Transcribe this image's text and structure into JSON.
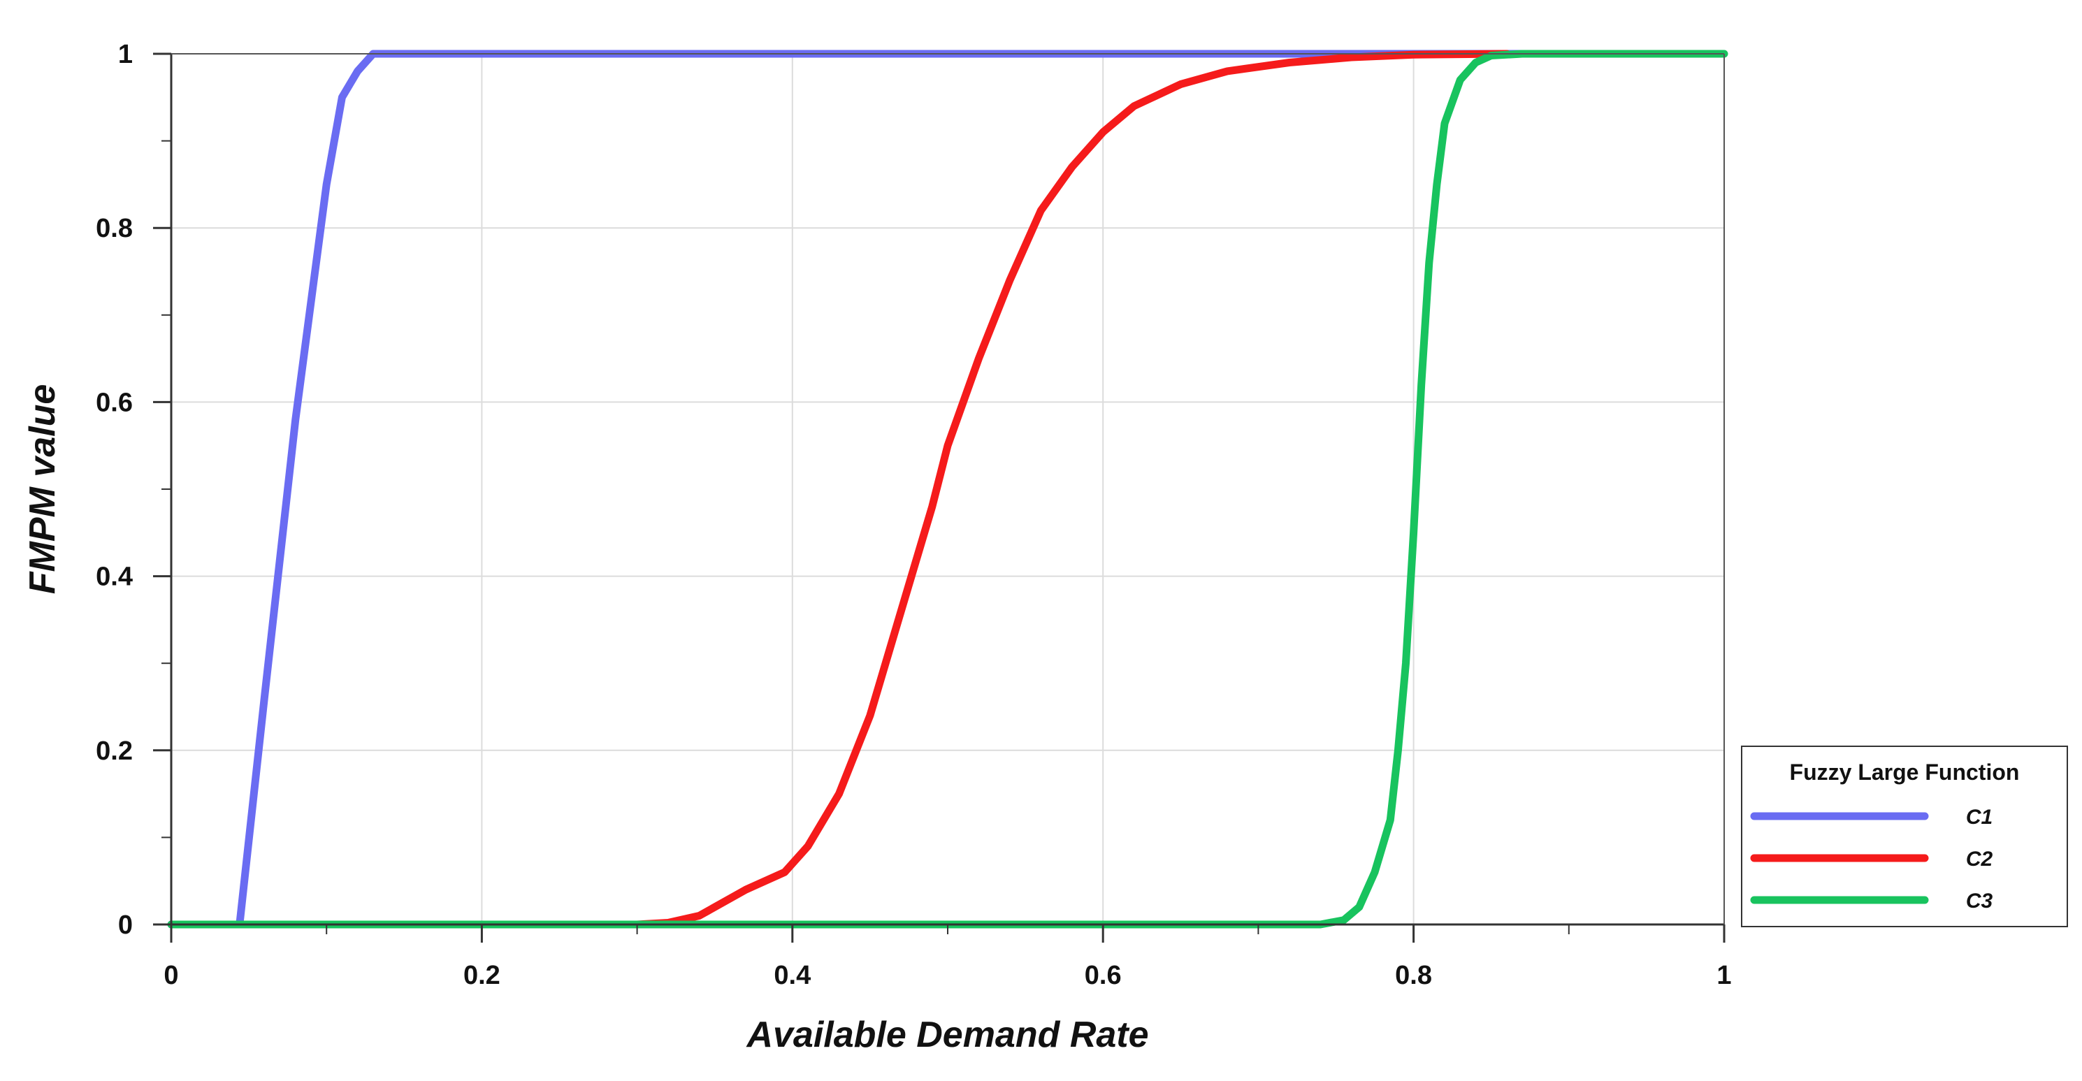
{
  "chart_data": {
    "type": "line",
    "title": "",
    "xlabel": "Available Demand Rate",
    "ylabel": "FMPM value",
    "xlim": [
      0,
      1
    ],
    "ylim": [
      0,
      1
    ],
    "x_ticks": [
      0,
      0.2,
      0.4,
      0.6,
      0.8,
      1
    ],
    "x_tick_labels": [
      "0",
      "0.2",
      "0.4",
      "0.6",
      "0.8",
      "1"
    ],
    "y_ticks": [
      0,
      0.2,
      0.4,
      0.6,
      0.8,
      1
    ],
    "y_tick_labels": [
      "0",
      "0.2",
      "0.4",
      "0.6",
      "0.8",
      "1"
    ],
    "grid": true,
    "legend": {
      "title": "Fuzzy Large Function",
      "placement": "right, outside plot area, lower"
    },
    "series": [
      {
        "name": "C1",
        "color": "#6a6cf2",
        "x": [
          0,
          0.044,
          0.06,
          0.08,
          0.1,
          0.11,
          0.12,
          0.13,
          0.15,
          0.2,
          0.4,
          0.6,
          0.8,
          0.88
        ],
        "y": [
          0,
          0,
          0.26,
          0.58,
          0.85,
          0.95,
          0.98,
          1,
          1,
          1,
          1,
          1,
          1,
          1
        ]
      },
      {
        "name": "C2",
        "color": "#f51b1b",
        "x": [
          0.3,
          0.32,
          0.34,
          0.37,
          0.395,
          0.41,
          0.43,
          0.45,
          0.47,
          0.49,
          0.5,
          0.52,
          0.54,
          0.56,
          0.58,
          0.6,
          0.62,
          0.65,
          0.68,
          0.72,
          0.76,
          0.8,
          0.86
        ],
        "y": [
          0,
          0.002,
          0.01,
          0.04,
          0.06,
          0.09,
          0.15,
          0.24,
          0.36,
          0.48,
          0.55,
          0.65,
          0.74,
          0.82,
          0.87,
          0.91,
          0.94,
          0.965,
          0.98,
          0.99,
          0.996,
          0.999,
          1
        ]
      },
      {
        "name": "C3",
        "color": "#18c35e",
        "x": [
          0,
          0.74,
          0.755,
          0.765,
          0.775,
          0.785,
          0.79,
          0.795,
          0.8,
          0.805,
          0.81,
          0.815,
          0.82,
          0.83,
          0.84,
          0.85,
          0.87,
          0.9,
          1
        ],
        "y": [
          0,
          0,
          0.005,
          0.02,
          0.06,
          0.12,
          0.2,
          0.3,
          0.45,
          0.62,
          0.76,
          0.85,
          0.92,
          0.97,
          0.99,
          0.998,
          1,
          1,
          1
        ]
      }
    ]
  }
}
